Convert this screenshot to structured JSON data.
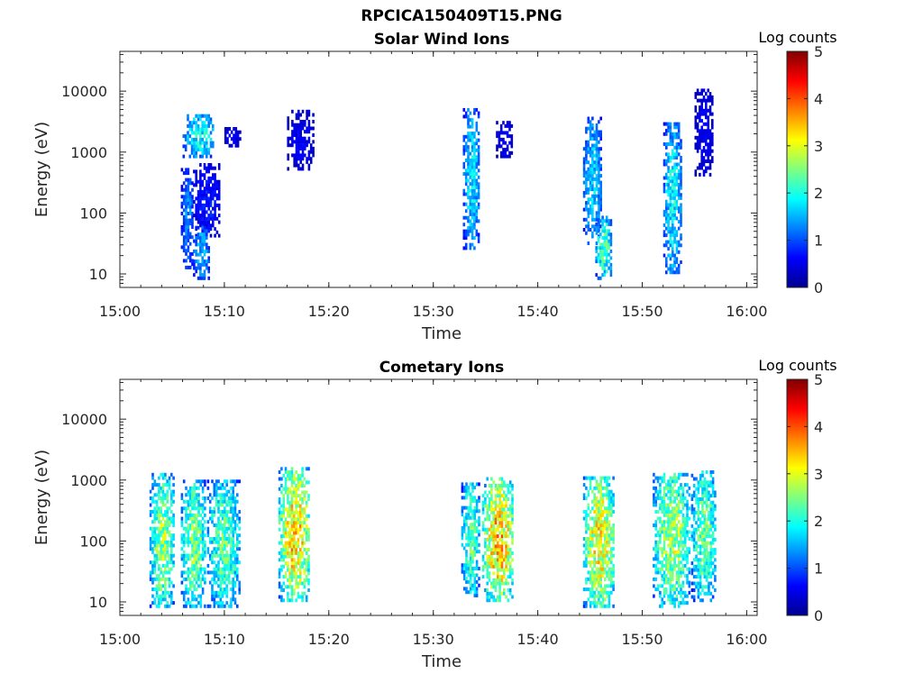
{
  "figure": {
    "title": "RPCICA150409T15.PNG"
  },
  "chart_data": [
    {
      "type": "heatmap",
      "title": "Solar Wind Ions",
      "xlabel": "Time",
      "ylabel": "Energy (eV)",
      "x_tick_labels": [
        "15:00",
        "15:10",
        "15:20",
        "15:30",
        "15:40",
        "15:50",
        "16:00"
      ],
      "xlim": [
        "15:00",
        "16:01"
      ],
      "y_scale": "log",
      "y_tick_labels": [
        "10",
        "100",
        "1000",
        "10000"
      ],
      "ylim": [
        6,
        45000
      ],
      "colorbar": {
        "label": "Log counts",
        "range": [
          0,
          5
        ],
        "tick_labels": [
          "0",
          "1",
          "2",
          "3",
          "4",
          "5"
        ],
        "colormap": "jet"
      },
      "clusters": [
        {
          "t_start": "15:05:50",
          "t_end": "15:07:00",
          "e_min": 12,
          "e_max": 500,
          "peak_log_counts": 1.3
        },
        {
          "t_start": "15:06:00",
          "t_end": "15:09:00",
          "e_min": 800,
          "e_max": 4000,
          "peak_log_counts": 2.0
        },
        {
          "t_start": "15:07:00",
          "t_end": "15:09:30",
          "e_min": 40,
          "e_max": 600,
          "peak_log_counts": 0.8
        },
        {
          "t_start": "15:07:00",
          "t_end": "15:08:30",
          "e_min": 8,
          "e_max": 60,
          "peak_log_counts": 1.6
        },
        {
          "t_start": "15:10:00",
          "t_end": "15:11:30",
          "e_min": 1200,
          "e_max": 2500,
          "peak_log_counts": 0.6
        },
        {
          "t_start": "15:16:00",
          "t_end": "15:18:30",
          "e_min": 500,
          "e_max": 4500,
          "peak_log_counts": 0.6
        },
        {
          "t_start": "15:32:50",
          "t_end": "15:34:20",
          "e_min": 25,
          "e_max": 5000,
          "peak_log_counts": 1.8
        },
        {
          "t_start": "15:36:00",
          "t_end": "15:37:30",
          "e_min": 800,
          "e_max": 3000,
          "peak_log_counts": 0.6
        },
        {
          "t_start": "15:44:20",
          "t_end": "15:46:00",
          "e_min": 30,
          "e_max": 3500,
          "peak_log_counts": 1.7
        },
        {
          "t_start": "15:45:30",
          "t_end": "15:47:00",
          "e_min": 8,
          "e_max": 80,
          "peak_log_counts": 2.3
        },
        {
          "t_start": "15:52:00",
          "t_end": "15:53:40",
          "e_min": 10,
          "e_max": 3000,
          "peak_log_counts": 1.9
        },
        {
          "t_start": "15:55:00",
          "t_end": "15:56:40",
          "e_min": 400,
          "e_max": 10000,
          "peak_log_counts": 0.6
        }
      ]
    },
    {
      "type": "heatmap",
      "title": "Cometary Ions",
      "xlabel": "Time",
      "ylabel": "Energy (eV)",
      "x_tick_labels": [
        "15:00",
        "15:10",
        "15:20",
        "15:30",
        "15:40",
        "15:50",
        "16:00"
      ],
      "xlim": [
        "15:00",
        "16:01"
      ],
      "y_scale": "log",
      "y_tick_labels": [
        "10",
        "100",
        "1000",
        "10000"
      ],
      "ylim": [
        6,
        45000
      ],
      "colorbar": {
        "label": "Log counts",
        "range": [
          0,
          5
        ],
        "tick_labels": [
          "0",
          "1",
          "2",
          "3",
          "4",
          "5"
        ],
        "colormap": "jet"
      },
      "clusters": [
        {
          "t_start": "15:02:50",
          "t_end": "15:05:10",
          "e_min": 8,
          "e_max": 1200,
          "peak_log_counts": 2.7
        },
        {
          "t_start": "15:05:50",
          "t_end": "15:08:10",
          "e_min": 8,
          "e_max": 900,
          "peak_log_counts": 2.6
        },
        {
          "t_start": "15:08:20",
          "t_end": "15:11:30",
          "e_min": 8,
          "e_max": 900,
          "peak_log_counts": 2.4
        },
        {
          "t_start": "15:15:10",
          "t_end": "15:18:10",
          "e_min": 10,
          "e_max": 1500,
          "peak_log_counts": 3.4
        },
        {
          "t_start": "15:32:40",
          "t_end": "15:34:20",
          "e_min": 12,
          "e_max": 900,
          "peak_log_counts": 2.4
        },
        {
          "t_start": "15:34:40",
          "t_end": "15:37:40",
          "e_min": 10,
          "e_max": 1000,
          "peak_log_counts": 3.5
        },
        {
          "t_start": "15:44:20",
          "t_end": "15:47:20",
          "e_min": 8,
          "e_max": 1100,
          "peak_log_counts": 3.2
        },
        {
          "t_start": "15:51:00",
          "t_end": "15:54:30",
          "e_min": 8,
          "e_max": 1300,
          "peak_log_counts": 2.8
        },
        {
          "t_start": "15:54:40",
          "t_end": "15:57:00",
          "e_min": 10,
          "e_max": 1400,
          "peak_log_counts": 2.5
        }
      ]
    }
  ]
}
